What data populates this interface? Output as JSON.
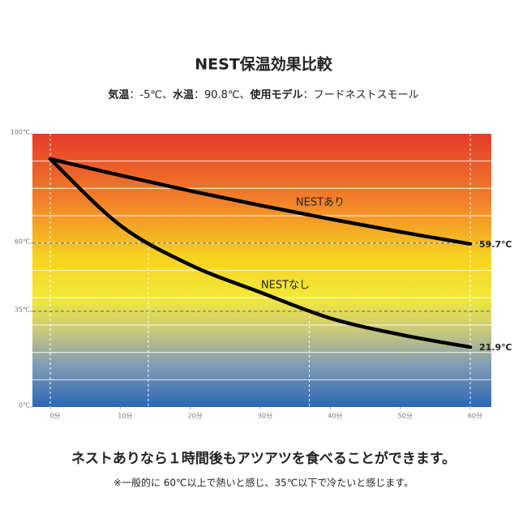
{
  "chart_data": {
    "type": "line",
    "title": "NEST保温効果比較",
    "subtitle_parts": [
      "気温",
      "：-5℃、",
      "水温",
      "：90.8℃、",
      "使用モデル",
      "：フードネストスモール"
    ],
    "x": [
      0,
      10,
      20,
      30,
      40,
      50,
      60
    ],
    "xlim": [
      0,
      60
    ],
    "xticks": [
      {
        "value": 0,
        "label": "0分"
      },
      {
        "value": 10,
        "label": "10分"
      },
      {
        "value": 20,
        "label": "20分"
      },
      {
        "value": 30,
        "label": "30分"
      },
      {
        "value": 40,
        "label": "40分"
      },
      {
        "value": 50,
        "label": "50分"
      },
      {
        "value": 60,
        "label": "60分"
      }
    ],
    "ylim": [
      0,
      100
    ],
    "yticks": [
      {
        "value": 0,
        "label": "0℃"
      },
      {
        "value": 35,
        "label": "35℃"
      },
      {
        "value": 60,
        "label": "60℃"
      },
      {
        "value": 100,
        "label": "100℃"
      }
    ],
    "grid_lines": [
      10,
      20,
      30,
      40,
      50,
      60,
      70,
      80,
      90
    ],
    "hlines": [
      60,
      35
    ],
    "guides": [
      {
        "x": 14,
        "y": 60
      },
      {
        "x": 37,
        "y": 35
      }
    ],
    "series": [
      {
        "name": "NESTあり",
        "color": "#000000",
        "values": [
          90.8,
          84.8,
          79.1,
          73.8,
          68.8,
          64.1,
          59.7
        ],
        "value_labels": [
          null,
          null,
          null,
          null,
          null,
          null,
          "59.7℃"
        ]
      },
      {
        "name": "NESTなし",
        "color": "#000000",
        "values": [
          90.8,
          66.5,
          52,
          42,
          32.5,
          26.5,
          21.9
        ],
        "value_labels": [
          null,
          null,
          null,
          null,
          null,
          null,
          "21.9℃"
        ]
      }
    ],
    "headline": "ネストありなら１時間後もアツアツを食べることができます。",
    "note": "※一般的に 60℃以上で熱いと感じ、35℃以下で冷たいと感じます。"
  }
}
